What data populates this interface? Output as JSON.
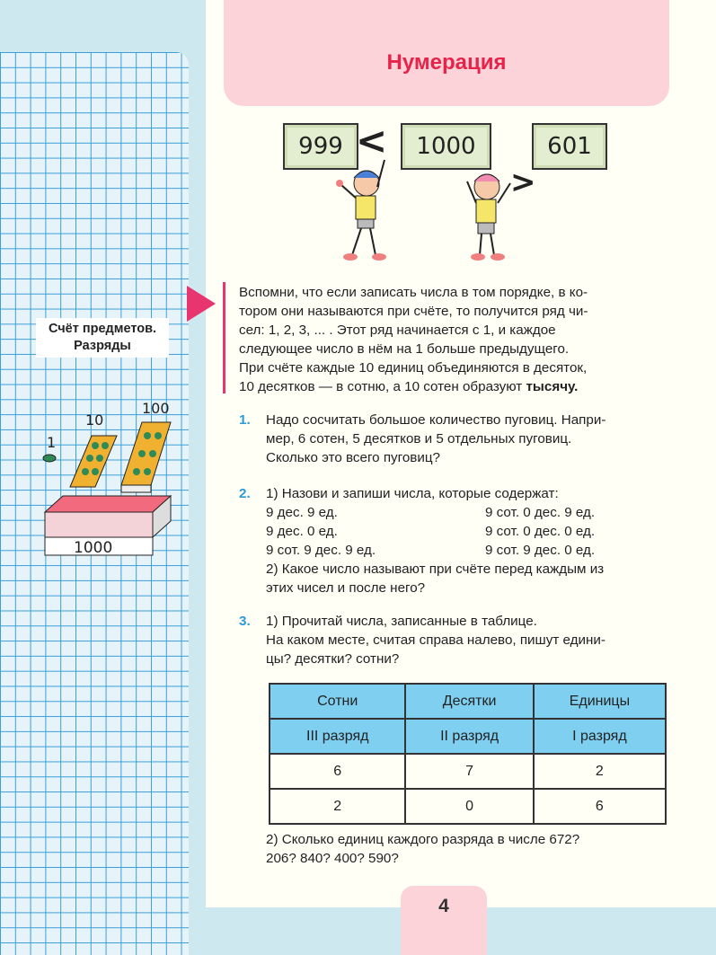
{
  "header": {
    "title": "Нумерация"
  },
  "sidebar": {
    "label_line1": "Счёт предметов.",
    "label_line2": "Разряды",
    "blocks": {
      "one": "1",
      "ten": "10",
      "hundred": "100",
      "thousand": "1000"
    }
  },
  "number_boxes": [
    "999",
    "1000",
    "601"
  ],
  "signs": {
    "left": "<",
    "right": ">"
  },
  "rule": {
    "lines": [
      "Вспомни, что если записать числа в том порядке, в ко-",
      "тором они называются при счёте, то получится ряд чи-",
      "сел: 1, 2, 3, ... . Этот ряд начинается с 1, и каждое",
      "следующее число в нём на 1 больше предыдущего.",
      "При счёте каждые 10 единиц объединяются в десяток,"
    ],
    "last_line": "10 десятков — в сотню, а 10 сотен образуют ",
    "bold_word": "тысячу."
  },
  "task1": {
    "number": "1.",
    "lines": [
      "Надо сосчитать большое количество пуговиц. Напри-",
      "мер, 6 сотен, 5 десятков и 5 отдельных пуговиц.",
      "Сколько это всего пуговиц?"
    ]
  },
  "task2": {
    "number": "2.",
    "intro": "1) Назови и запиши числа, которые содержат:",
    "left": [
      "9 дес. 9 ед.",
      "9 дес. 0 ед.",
      "9 сот. 9 дес. 9 ед."
    ],
    "right": [
      "9 сот. 0 дес. 9 ед.",
      "9 сот. 0 дес. 0 ед.",
      "9 сот. 9 дес. 0 ед."
    ],
    "q2": [
      "2) Какое число называют при счёте перед каждым из",
      "этих чисел и после него?"
    ]
  },
  "task3": {
    "number": "3.",
    "lines": [
      "1) Прочитай числа, записанные в таблице.",
      "На каком месте, считая справа налево, пишут едини-",
      "цы? десятки? сотни?"
    ],
    "q2": [
      "2) Сколько единиц каждого разряда в числе 672?",
      "206? 840? 400? 590?"
    ]
  },
  "table": {
    "headers": [
      "Сотни",
      "Десятки",
      "Единицы"
    ],
    "ranks": [
      "III разряд",
      "II разряд",
      "I разряд"
    ],
    "rows": [
      [
        "6",
        "7",
        "2"
      ],
      [
        "2",
        "0",
        "6"
      ]
    ]
  },
  "page_number": "4",
  "colors": {
    "accent_pink": "#e8234a",
    "task_blue": "#2a9ad8",
    "header_bg": "#fbd3d9",
    "table_head": "#7fcff0"
  }
}
